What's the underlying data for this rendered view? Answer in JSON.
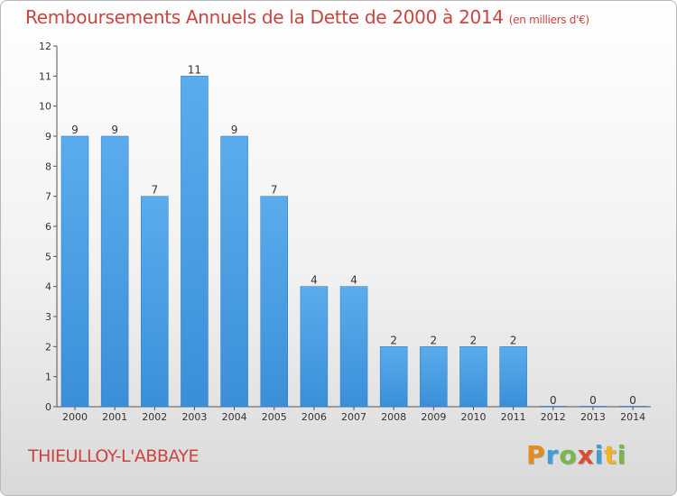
{
  "chart_data": {
    "type": "bar",
    "title": "Remboursements Annuels de la Dette de 2000 à 2014",
    "subtitle": "(en milliers d'€)",
    "categories": [
      "2000",
      "2001",
      "2002",
      "2003",
      "2004",
      "2005",
      "2006",
      "2007",
      "2008",
      "2009",
      "2010",
      "2011",
      "2012",
      "2013",
      "2014"
    ],
    "values": [
      9,
      9,
      7,
      11,
      9,
      7,
      4,
      4,
      2,
      2,
      2,
      2,
      0,
      0,
      0
    ],
    "ylim": [
      0,
      12
    ],
    "yticks": [
      "0",
      "1",
      "2",
      "3",
      "4",
      "5",
      "6",
      "7",
      "8",
      "9",
      "10",
      "11",
      "12"
    ],
    "xlabel": "",
    "ylabel": "",
    "grid": false,
    "bar_color": "#3a8fd8"
  },
  "commune": "THIEULLOY-L'ABBAYE",
  "logo": {
    "text": "Proxiti",
    "letters": [
      "P",
      "r",
      "o",
      "x",
      "i",
      "t",
      "i"
    ],
    "colors": [
      "#e88a1e",
      "#3d9fd8",
      "#7ab648",
      "#e04a2f",
      "#3d9fd8",
      "#f2b51f",
      "#7ab648"
    ]
  }
}
